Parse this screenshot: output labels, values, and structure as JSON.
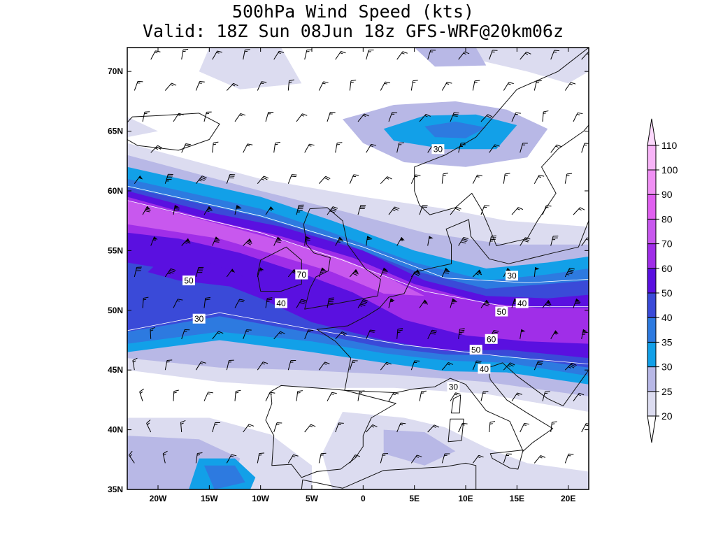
{
  "title": {
    "line1": "500hPa Wind Speed (kts)",
    "line2": "Valid: 18Z Sun 08Jun 18z GFS-WRF@20km06z"
  },
  "map": {
    "lon_range": [
      -23,
      22
    ],
    "lat_range": [
      35,
      72
    ],
    "x_ticks": [
      {
        "lon": -20,
        "label": "20W"
      },
      {
        "lon": -15,
        "label": "15W"
      },
      {
        "lon": -10,
        "label": "10W"
      },
      {
        "lon": -5,
        "label": "5W"
      },
      {
        "lon": 0,
        "label": "0"
      },
      {
        "lon": 5,
        "label": "5E"
      },
      {
        "lon": 10,
        "label": "10E"
      },
      {
        "lon": 15,
        "label": "15E"
      },
      {
        "lon": 20,
        "label": "20E"
      }
    ],
    "y_ticks": [
      {
        "lat": 70,
        "label": "70N"
      },
      {
        "lat": 65,
        "label": "65N"
      },
      {
        "lat": 60,
        "label": "60N"
      },
      {
        "lat": 55,
        "label": "55N"
      },
      {
        "lat": 50,
        "label": "50N"
      },
      {
        "lat": 45,
        "label": "45N"
      },
      {
        "lat": 40,
        "label": "40N"
      },
      {
        "lat": 35,
        "label": "35N"
      }
    ],
    "contour_labels": [
      {
        "text": "30",
        "lon": 7.3,
        "lat": 63.5
      },
      {
        "text": "70",
        "lon": -6.0,
        "lat": 53.0
      },
      {
        "text": "50",
        "lon": -17.0,
        "lat": 52.5
      },
      {
        "text": "40",
        "lon": -8.0,
        "lat": 50.6
      },
      {
        "text": "30",
        "lon": -16.0,
        "lat": 49.3
      },
      {
        "text": "30",
        "lon": 14.5,
        "lat": 52.9
      },
      {
        "text": "40",
        "lon": 15.5,
        "lat": 50.6
      },
      {
        "text": "50",
        "lon": 13.5,
        "lat": 49.9
      },
      {
        "text": "60",
        "lon": 12.5,
        "lat": 47.6
      },
      {
        "text": "50",
        "lon": 11.0,
        "lat": 46.7
      },
      {
        "text": "40",
        "lon": 11.8,
        "lat": 45.1
      },
      {
        "text": "30",
        "lon": 8.8,
        "lat": 43.6
      }
    ]
  },
  "colorbar": {
    "levels": [
      "20",
      "25",
      "30",
      "35",
      "40",
      "50",
      "60",
      "70",
      "80",
      "90",
      "100",
      "110"
    ],
    "colors": [
      "#dcdcf0",
      "#b8b8e6",
      "#12a0e8",
      "#2d7ae0",
      "#3a4ad8",
      "#5a10e0",
      "#a02ee8",
      "#c858ee",
      "#e060f0",
      "#f090f4",
      "#f8b4f8",
      "#fcd8fc"
    ]
  }
}
